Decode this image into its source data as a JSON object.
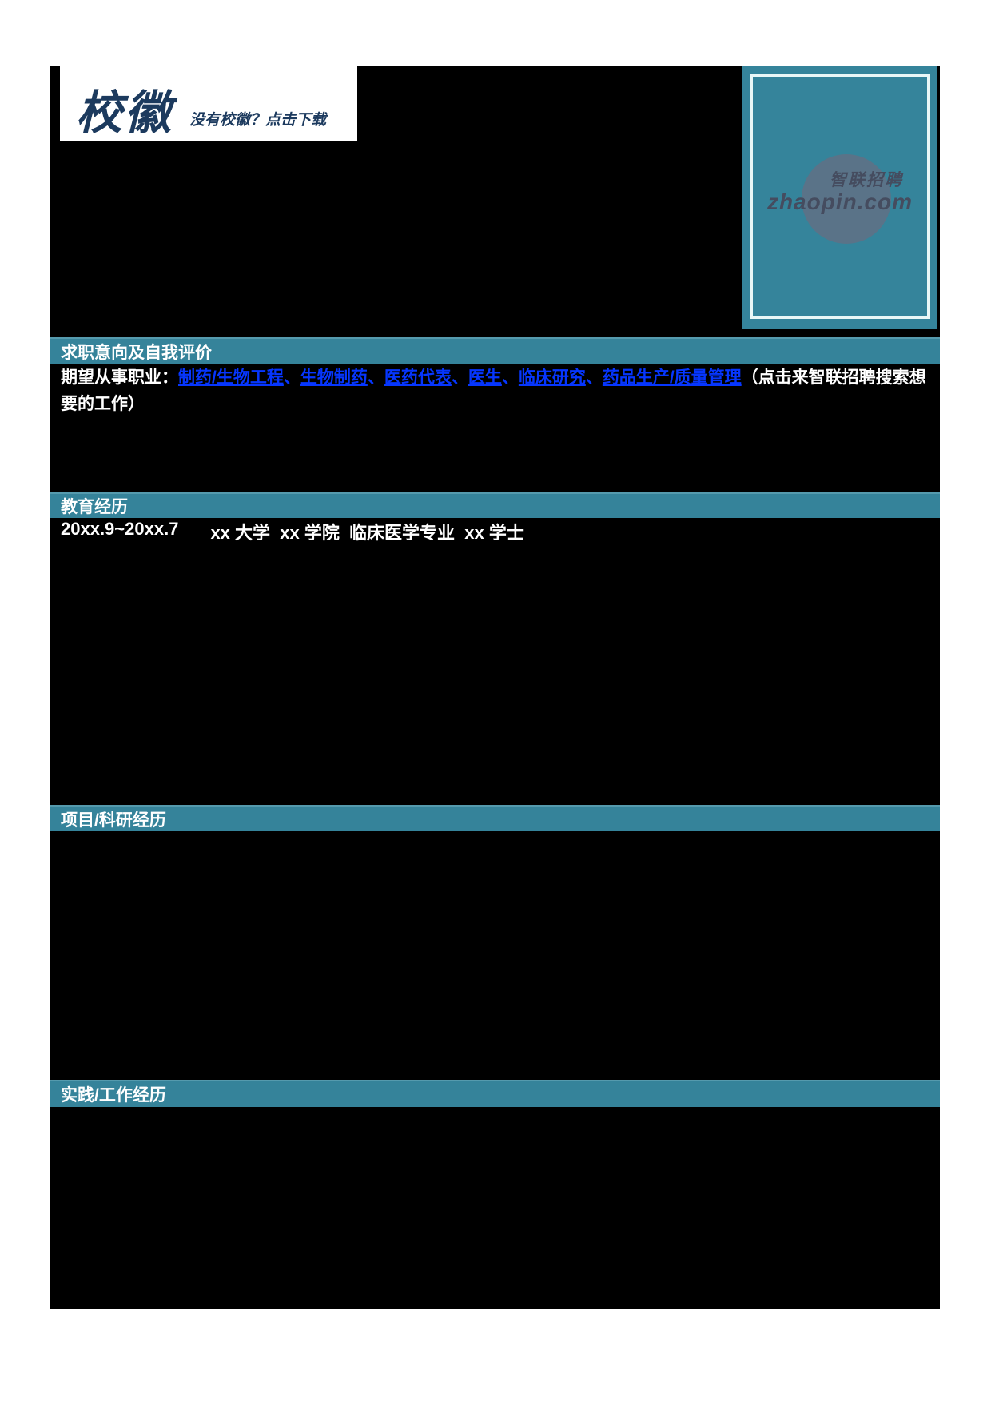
{
  "badge": {
    "title": "校徽",
    "download_hint": "没有校徽？点击下载"
  },
  "photo": {
    "watermark_line1": "智联招聘",
    "watermark_line2": "zhaopin.com"
  },
  "sections": {
    "intention": {
      "title": "求职意向及自我评价"
    },
    "education": {
      "title": "教育经历"
    },
    "project": {
      "title": "项目/科研经历"
    },
    "work": {
      "title": "实践/工作经历"
    }
  },
  "intention": {
    "label": "期望从事职业：",
    "links": [
      "制药/生物工程",
      "生物制药",
      "医药代表",
      "医生",
      "临床研究",
      "药品生产/质量管理"
    ],
    "separator": "、",
    "suffix": "（点击来智联招聘搜索想要的工作）"
  },
  "education": {
    "period": "20xx.9~20xx.7",
    "detail": "xx 大学  xx 学院  临床医学专业  xx 学士"
  },
  "colors": {
    "teal": "#35839a",
    "link_blue": "#0636ff",
    "navy": "#1c3a5e",
    "background": "#000000"
  }
}
